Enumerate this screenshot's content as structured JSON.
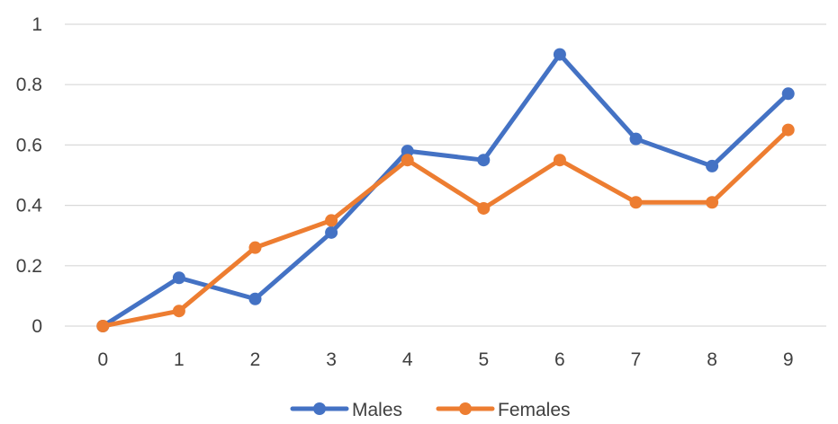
{
  "chart_data": {
    "type": "line",
    "title": "",
    "xlabel": "",
    "ylabel": "",
    "x": [
      0,
      1,
      2,
      3,
      4,
      5,
      6,
      7,
      8,
      9
    ],
    "x_tick_labels": [
      "0",
      "1",
      "2",
      "3",
      "4",
      "5",
      "6",
      "7",
      "8",
      "9"
    ],
    "y_tick_labels": [
      "0",
      "0.2",
      "0.4",
      "0.6",
      "0.8",
      "1"
    ],
    "y_ticks": [
      0,
      0.2,
      0.4,
      0.6,
      0.8,
      1
    ],
    "ylim": [
      0,
      1
    ],
    "grid": "horizontal",
    "legend_position": "bottom",
    "series": [
      {
        "name": "Males",
        "color": "#4472C4",
        "values": [
          0.0,
          0.16,
          0.09,
          0.31,
          0.58,
          0.55,
          0.9,
          0.62,
          0.53,
          0.77
        ]
      },
      {
        "name": "Females",
        "color": "#ED7D31",
        "values": [
          0.0,
          0.05,
          0.26,
          0.35,
          0.55,
          0.39,
          0.55,
          0.41,
          0.41,
          0.65
        ]
      }
    ]
  }
}
